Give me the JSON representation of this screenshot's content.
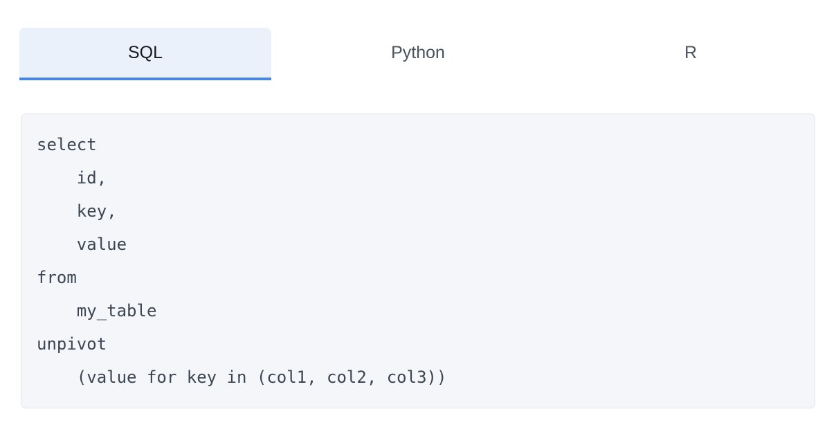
{
  "tabs": [
    {
      "label": "SQL",
      "active": true
    },
    {
      "label": "Python",
      "active": false
    },
    {
      "label": "R",
      "active": false
    }
  ],
  "code": {
    "language": "sql",
    "content": "select\n    id,\n    key,\n    value\nfrom\n    my_table\nunpivot\n    (value for key in (col1, col2, col3))"
  },
  "colors": {
    "active_tab_background": "#eaf1fb",
    "active_tab_underline": "#4a86de",
    "active_tab_text": "#17191d",
    "inactive_tab_text": "#49525f",
    "code_background": "#f5f6f9",
    "code_border": "#e2e4ea",
    "code_text": "#3c4653"
  }
}
